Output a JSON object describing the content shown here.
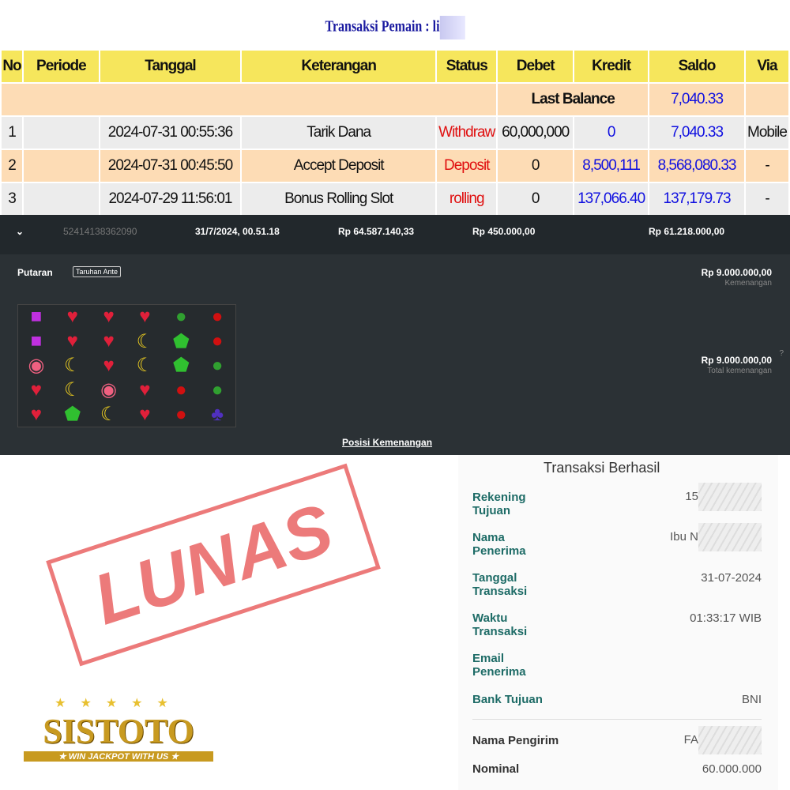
{
  "title": "Transaksi  Pemain : li",
  "table": {
    "headers": [
      "No",
      "Periode",
      "Tanggal",
      "Keterangan",
      "Status",
      "Debet",
      "Kredit",
      "Saldo",
      "Via"
    ],
    "last_balance_label": "Last Balance",
    "last_balance": "7,040.33",
    "rows": [
      {
        "no": "1",
        "periode": "",
        "tanggal": "2024-07-31 00:55:36",
        "ket": "Tarik Dana",
        "status": "Withdraw",
        "debet": "60,000,000",
        "kredit": "0",
        "saldo": "7,040.33",
        "via": "Mobile"
      },
      {
        "no": "2",
        "periode": "",
        "tanggal": "2024-07-31 00:45:50",
        "ket": "Accept Deposit",
        "status": "Deposit",
        "debet": "0",
        "kredit": "8,500,111",
        "saldo": "8,568,080.33",
        "via": "-"
      },
      {
        "no": "3",
        "periode": "",
        "tanggal": "2024-07-29 11:56:01",
        "ket": "Bonus Rolling Slot",
        "status": "rolling",
        "debet": "0",
        "kredit": "137,066.40",
        "saldo": "137,179.73",
        "via": "-"
      }
    ]
  },
  "game": {
    "id": "52414138362090",
    "date": "31/7/2024, 00.51.18",
    "balance": "Rp 64.587.140,33",
    "bet": "Rp 450.000,00",
    "total": "Rp 61.218.000,00",
    "putaran": "Putaran",
    "badge": "Taruhan Ante",
    "win": "Rp 9.000.000,00",
    "win_label": "Kemenangan",
    "total_win": "Rp 9.000.000,00",
    "total_win_label": "Total kemenangan",
    "link": "Posisi Kemenangan",
    "grid": [
      [
        "candy",
        "heart",
        "heart",
        "heart",
        "melon",
        "apple"
      ],
      [
        "candy",
        "heart",
        "heart",
        "banana",
        "gem",
        "apple"
      ],
      [
        "lollipop",
        "banana",
        "heart",
        "banana",
        "gem",
        "melon"
      ],
      [
        "heart",
        "banana",
        "lollipop",
        "heart",
        "apple",
        "melon"
      ],
      [
        "heart",
        "gem",
        "banana",
        "heart",
        "apple",
        "grape"
      ]
    ]
  },
  "stamp": "LUNAS",
  "receipt": {
    "title": "Transaksi Berhasil",
    "rows": [
      {
        "label": "Rekening\nTujuan",
        "value": "15"
      },
      {
        "label": "Nama\nPenerima",
        "value": "Ibu N"
      },
      {
        "label": "Tanggal\nTransaksi",
        "value": "31-07-2024"
      },
      {
        "label": "Waktu\nTransaksi",
        "value": "01:33:17 WIB"
      },
      {
        "label": "Email\nPenerima",
        "value": ""
      },
      {
        "label": "Bank Tujuan",
        "value": "BNI"
      },
      {
        "label": "Nama Pengirim",
        "value": "FA"
      },
      {
        "label": "Nominal",
        "value": "60.000.000"
      }
    ]
  },
  "logo": {
    "name": "SISTOTO",
    "tagline": "WIN JACKPOT WITH US"
  }
}
